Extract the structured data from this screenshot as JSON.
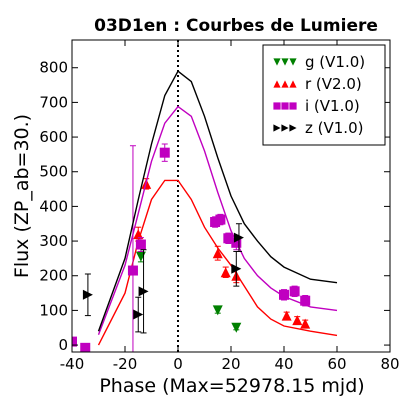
{
  "chart_data": {
    "type": "scatter",
    "title": "03D1en : Courbes de Lumiere",
    "xlabel": "Phase (Max=52978.15 mjd)",
    "ylabel": "Flux (ZP_ab=30.)",
    "xlim": [
      -40,
      80
    ],
    "ylim": [
      -20,
      880
    ],
    "xticks": [
      -40,
      -20,
      0,
      20,
      40,
      60,
      80
    ],
    "yticks": [
      0,
      100,
      200,
      300,
      400,
      500,
      600,
      700,
      800
    ],
    "max_marker_x": 0,
    "legend_position": "top-right",
    "series": [
      {
        "name": "g (V1.0)",
        "color": "#008000",
        "marker": "triangle-down",
        "points": [
          [
            -14,
            255,
            15
          ],
          [
            15,
            100,
            8
          ],
          [
            22,
            50,
            6
          ]
        ],
        "curve": []
      },
      {
        "name": "r (V2.0)",
        "color": "#ff0000",
        "marker": "triangle-up",
        "points": [
          [
            -15,
            320,
            20
          ],
          [
            -12,
            465,
            15
          ],
          [
            15,
            265,
            20
          ],
          [
            18,
            210,
            15
          ],
          [
            22,
            200,
            20
          ],
          [
            41,
            85,
            10
          ],
          [
            45,
            72,
            10
          ],
          [
            48,
            62,
            10
          ]
        ],
        "curve": [
          [
            -30,
            0
          ],
          [
            -20,
            150
          ],
          [
            -15,
            300
          ],
          [
            -10,
            420
          ],
          [
            -5,
            475
          ],
          [
            0,
            475
          ],
          [
            5,
            420
          ],
          [
            10,
            340
          ],
          [
            15,
            280
          ],
          [
            20,
            230
          ],
          [
            25,
            170
          ],
          [
            30,
            110
          ],
          [
            35,
            75
          ],
          [
            40,
            55
          ],
          [
            50,
            40
          ],
          [
            60,
            28
          ]
        ]
      },
      {
        "name": "i (V1.0)",
        "color": "#c000c0",
        "marker": "square",
        "points": [
          [
            -40,
            10,
            10
          ],
          [
            -35,
            -8,
            10
          ],
          [
            -17,
            215,
            360
          ],
          [
            -14,
            290,
            20
          ],
          [
            -5,
            555,
            25
          ],
          [
            14,
            355,
            15
          ],
          [
            16,
            362,
            15
          ],
          [
            19,
            308,
            15
          ],
          [
            22,
            295,
            20
          ],
          [
            40,
            145,
            15
          ],
          [
            44,
            155,
            15
          ],
          [
            48,
            128,
            15
          ]
        ],
        "curve": [
          [
            -30,
            30
          ],
          [
            -20,
            230
          ],
          [
            -15,
            380
          ],
          [
            -10,
            530
          ],
          [
            -5,
            640
          ],
          [
            0,
            688
          ],
          [
            5,
            660
          ],
          [
            10,
            560
          ],
          [
            15,
            440
          ],
          [
            20,
            330
          ],
          [
            25,
            250
          ],
          [
            30,
            200
          ],
          [
            35,
            165
          ],
          [
            40,
            140
          ],
          [
            50,
            110
          ],
          [
            60,
            100
          ]
        ]
      },
      {
        "name": "z (V1.0)",
        "color": "#000000",
        "marker": "triangle-right",
        "points": [
          [
            -34,
            145,
            60
          ],
          [
            -15,
            88,
            50
          ],
          [
            -13,
            155,
            120
          ],
          [
            22,
            220,
            50
          ],
          [
            23,
            310,
            40
          ]
        ],
        "curve": [
          [
            -30,
            40
          ],
          [
            -20,
            250
          ],
          [
            -15,
            420
          ],
          [
            -10,
            580
          ],
          [
            -5,
            720
          ],
          [
            0,
            790
          ],
          [
            5,
            760
          ],
          [
            10,
            660
          ],
          [
            15,
            540
          ],
          [
            20,
            430
          ],
          [
            25,
            350
          ],
          [
            30,
            300
          ],
          [
            35,
            255
          ],
          [
            40,
            225
          ],
          [
            50,
            190
          ],
          [
            60,
            180
          ]
        ]
      }
    ]
  }
}
